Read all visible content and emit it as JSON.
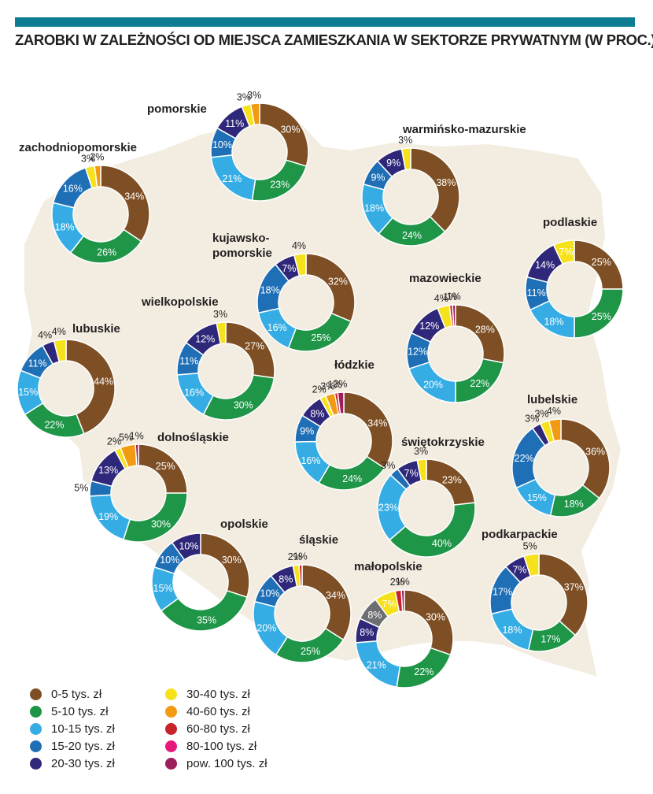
{
  "title": "ZAROBKI W ZALEŻNOŚCI OD MIEJSCA ZAMIESZKANIA W SEKTORZE PRYWATNYM (W PROC.)",
  "colors": {
    "accent_bar": "#0e7d93",
    "map_fill": "#f3ede1",
    "map_border": "#ffffff"
  },
  "chart_data": {
    "type": "donut",
    "categories": [
      "0-5 tys. zł",
      "5-10 tys. zł",
      "10-15 tys. zł",
      "15-20 tys. zł",
      "20-30 tys. zł",
      "30-40 tys. zł",
      "40-60 tys. zł",
      "60-80 tys. zł",
      "80-100 tys. zł",
      "pow. 100 tys. zł"
    ],
    "category_colors": [
      "#7e4f24",
      "#1e9547",
      "#35ade4",
      "#1f6fb7",
      "#2f287a",
      "#f6e11d",
      "#f39a13",
      "#c8232a",
      "#e6197a",
      "#9c1e5c"
    ],
    "regions": [
      {
        "name": "pomorskie",
        "values": [
          30,
          23,
          21,
          10,
          11,
          3,
          3,
          0,
          0,
          0
        ],
        "labels": [
          "30%",
          "23%",
          "21%",
          "10%",
          "11%",
          "3%",
          "3%",
          "",
          "",
          ""
        ]
      },
      {
        "name": "zachodniopomorskie",
        "values": [
          34,
          26,
          18,
          16,
          0,
          3,
          2,
          0,
          0,
          0
        ],
        "labels": [
          "34%",
          "26%",
          "18%",
          "16%",
          "",
          "3%",
          "2%",
          "",
          "",
          ""
        ]
      },
      {
        "name": "warmińsko-mazurskie",
        "values": [
          38,
          24,
          18,
          9,
          9,
          3,
          0,
          0,
          0,
          0
        ],
        "labels": [
          "38%",
          "24%",
          "18%",
          "9%",
          "9%",
          "3%",
          "",
          "",
          "",
          ""
        ]
      },
      {
        "name": "kujawsko-\npomorskie",
        "values": [
          32,
          25,
          16,
          18,
          7,
          4,
          0,
          0,
          0,
          0
        ],
        "labels": [
          "32%",
          "25%",
          "16%",
          "18%",
          "7%",
          "4%",
          "",
          "",
          "",
          ""
        ]
      },
      {
        "name": "podlaskie",
        "values": [
          25,
          25,
          18,
          11,
          14,
          7,
          0,
          0,
          0,
          0
        ],
        "labels": [
          "25%",
          "25%",
          "18%",
          "11%",
          "14%",
          "7%",
          "",
          "",
          "",
          ""
        ]
      },
      {
        "name": "mazowieckie",
        "values": [
          28,
          22,
          20,
          12,
          12,
          4,
          0,
          1,
          0,
          1
        ],
        "labels": [
          "28%",
          "22%",
          "20%",
          "12%",
          "12%",
          "4%",
          "",
          "1%",
          "",
          "1%"
        ]
      },
      {
        "name": "wielkopolskie",
        "values": [
          27,
          30,
          16,
          11,
          12,
          3,
          0,
          0,
          0,
          0
        ],
        "labels": [
          "27%",
          "30%",
          "16%",
          "11%",
          "12%",
          "3%",
          "",
          "",
          "",
          ""
        ]
      },
      {
        "name": "lubuskie",
        "values": [
          44,
          22,
          15,
          11,
          4,
          4,
          0,
          0,
          0,
          0
        ],
        "labels": [
          "44%",
          "22%",
          "15%",
          "11%",
          "4%",
          "4%",
          "",
          "",
          "",
          ""
        ]
      },
      {
        "name": "łódzkie",
        "values": [
          34,
          24,
          16,
          9,
          8,
          2,
          3,
          1,
          0,
          2
        ],
        "labels": [
          "34%",
          "24%",
          "16%",
          "9%",
          "8%",
          "2%",
          "3%",
          "1%",
          "",
          "2%"
        ]
      },
      {
        "name": "lubelskie",
        "values": [
          36,
          18,
          15,
          22,
          3,
          3,
          4,
          0,
          0,
          0
        ],
        "labels": [
          "36%",
          "18%",
          "15%",
          "22%",
          "3%",
          "3%",
          "4%",
          "",
          "",
          ""
        ]
      },
      {
        "name": "dolnośląskie",
        "values": [
          25,
          30,
          19,
          5,
          13,
          2,
          5,
          0,
          0,
          1
        ],
        "labels": [
          "25%",
          "30%",
          "19%",
          "5%",
          "13%",
          "2%",
          "5%",
          "",
          "",
          "1%"
        ]
      },
      {
        "name": "świętokrzyskie",
        "values": [
          23,
          40,
          23,
          3,
          7,
          3,
          0,
          0,
          0,
          0
        ],
        "labels": [
          "23%",
          "40%",
          "23%",
          "3%",
          "7%",
          "3%",
          "",
          "",
          "",
          ""
        ]
      },
      {
        "name": "opolskie",
        "values": [
          30,
          35,
          15,
          10,
          10,
          0,
          0,
          0,
          0,
          0
        ],
        "labels": [
          "30%",
          "35%",
          "15%",
          "10%",
          "10%",
          "",
          "",
          "",
          "",
          ""
        ]
      },
      {
        "name": "śląskie",
        "values": [
          34,
          25,
          20,
          10,
          8,
          2,
          0,
          1,
          0,
          0
        ],
        "labels": [
          "34%",
          "25%",
          "20%",
          "10%",
          "8%",
          "2%",
          "",
          "1%",
          "",
          ""
        ]
      },
      {
        "name": "podkarpackie",
        "values": [
          37,
          17,
          18,
          17,
          7,
          5,
          0,
          0,
          0,
          0
        ],
        "labels": [
          "37%",
          "17%",
          "18%",
          "17%",
          "7%",
          "5%",
          "",
          "",
          "",
          ""
        ]
      },
      {
        "name": "małopolskie",
        "values": [
          30,
          22,
          21,
          0,
          8,
          7,
          0,
          2,
          0,
          1
        ],
        "extra": {
          "label": "8%",
          "color": "#6d6e71",
          "value": 8,
          "position": 4
        },
        "labels": [
          "30%",
          "22%",
          "21%",
          "",
          "8%",
          "7%",
          "",
          "2%",
          "",
          "1%"
        ]
      }
    ],
    "legend": [
      {
        "label": "0-5 tys. zł",
        "color": "#7e4f24"
      },
      {
        "label": "5-10 tys. zł",
        "color": "#1e9547"
      },
      {
        "label": "10-15 tys. zł",
        "color": "#35ade4"
      },
      {
        "label": "15-20 tys. zł",
        "color": "#1f6fb7"
      },
      {
        "label": "20-30 tys. zł",
        "color": "#2f287a"
      },
      {
        "label": "30-40 tys. zł",
        "color": "#f6e11d"
      },
      {
        "label": "40-60 tys. zł",
        "color": "#f39a13"
      },
      {
        "label": "60-80 tys. zł",
        "color": "#c8232a"
      },
      {
        "label": "80-100 tys. zł",
        "color": "#e6197a"
      },
      {
        "label": "pow. 100 tys. zł",
        "color": "#9c1e5c"
      }
    ]
  }
}
